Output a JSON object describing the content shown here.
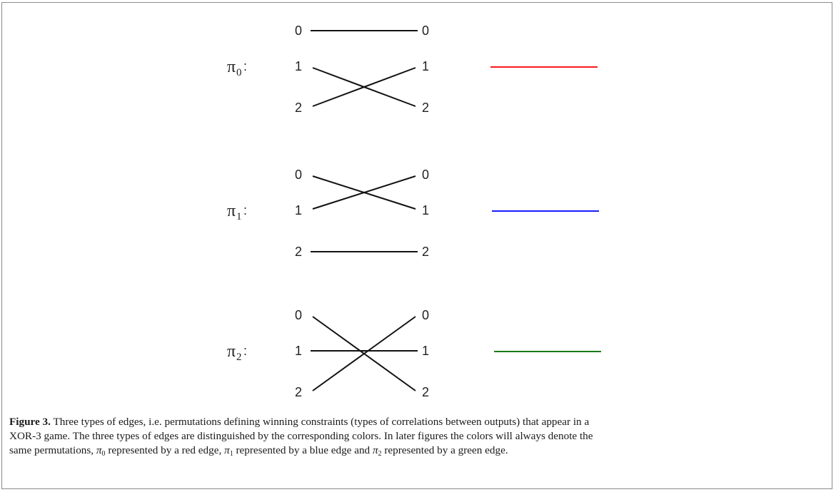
{
  "diagram": {
    "node_labels": [
      "0",
      "1",
      "2"
    ],
    "panels": [
      {
        "name": "pi0",
        "symbol": "π",
        "subscript": "0",
        "colon": ":",
        "edges": [
          [
            0,
            0
          ],
          [
            1,
            2
          ],
          [
            2,
            1
          ]
        ],
        "color": "#ff1a1a",
        "color_word": "red"
      },
      {
        "name": "pi1",
        "symbol": "π",
        "subscript": "1",
        "colon": ":",
        "edges": [
          [
            0,
            1
          ],
          [
            1,
            0
          ],
          [
            2,
            2
          ]
        ],
        "color": "#1a1aff",
        "color_word": "blue"
      },
      {
        "name": "pi2",
        "symbol": "π",
        "subscript": "2",
        "colon": ":",
        "edges": [
          [
            0,
            2
          ],
          [
            1,
            1
          ],
          [
            2,
            0
          ]
        ],
        "color": "#1a7a1a",
        "color_word": "green"
      }
    ]
  },
  "caption": {
    "label": "Figure 3.",
    "line1": "Three types of edges, i.e. permutations defining winning constraints (types of correlations between outputs) that appear in a",
    "line2": "XOR-3 game. The three types of edges are distinguished by the corresponding colors. In later figures the colors will always denote the",
    "line3_start": "same permutations,",
    "pi": "π",
    "sub0": "0",
    "seg_red": "represented by a red edge,",
    "sub1": "1",
    "seg_blue": "represented by a blue edge and",
    "sub2": "2",
    "seg_green": "represented by a green edge."
  }
}
